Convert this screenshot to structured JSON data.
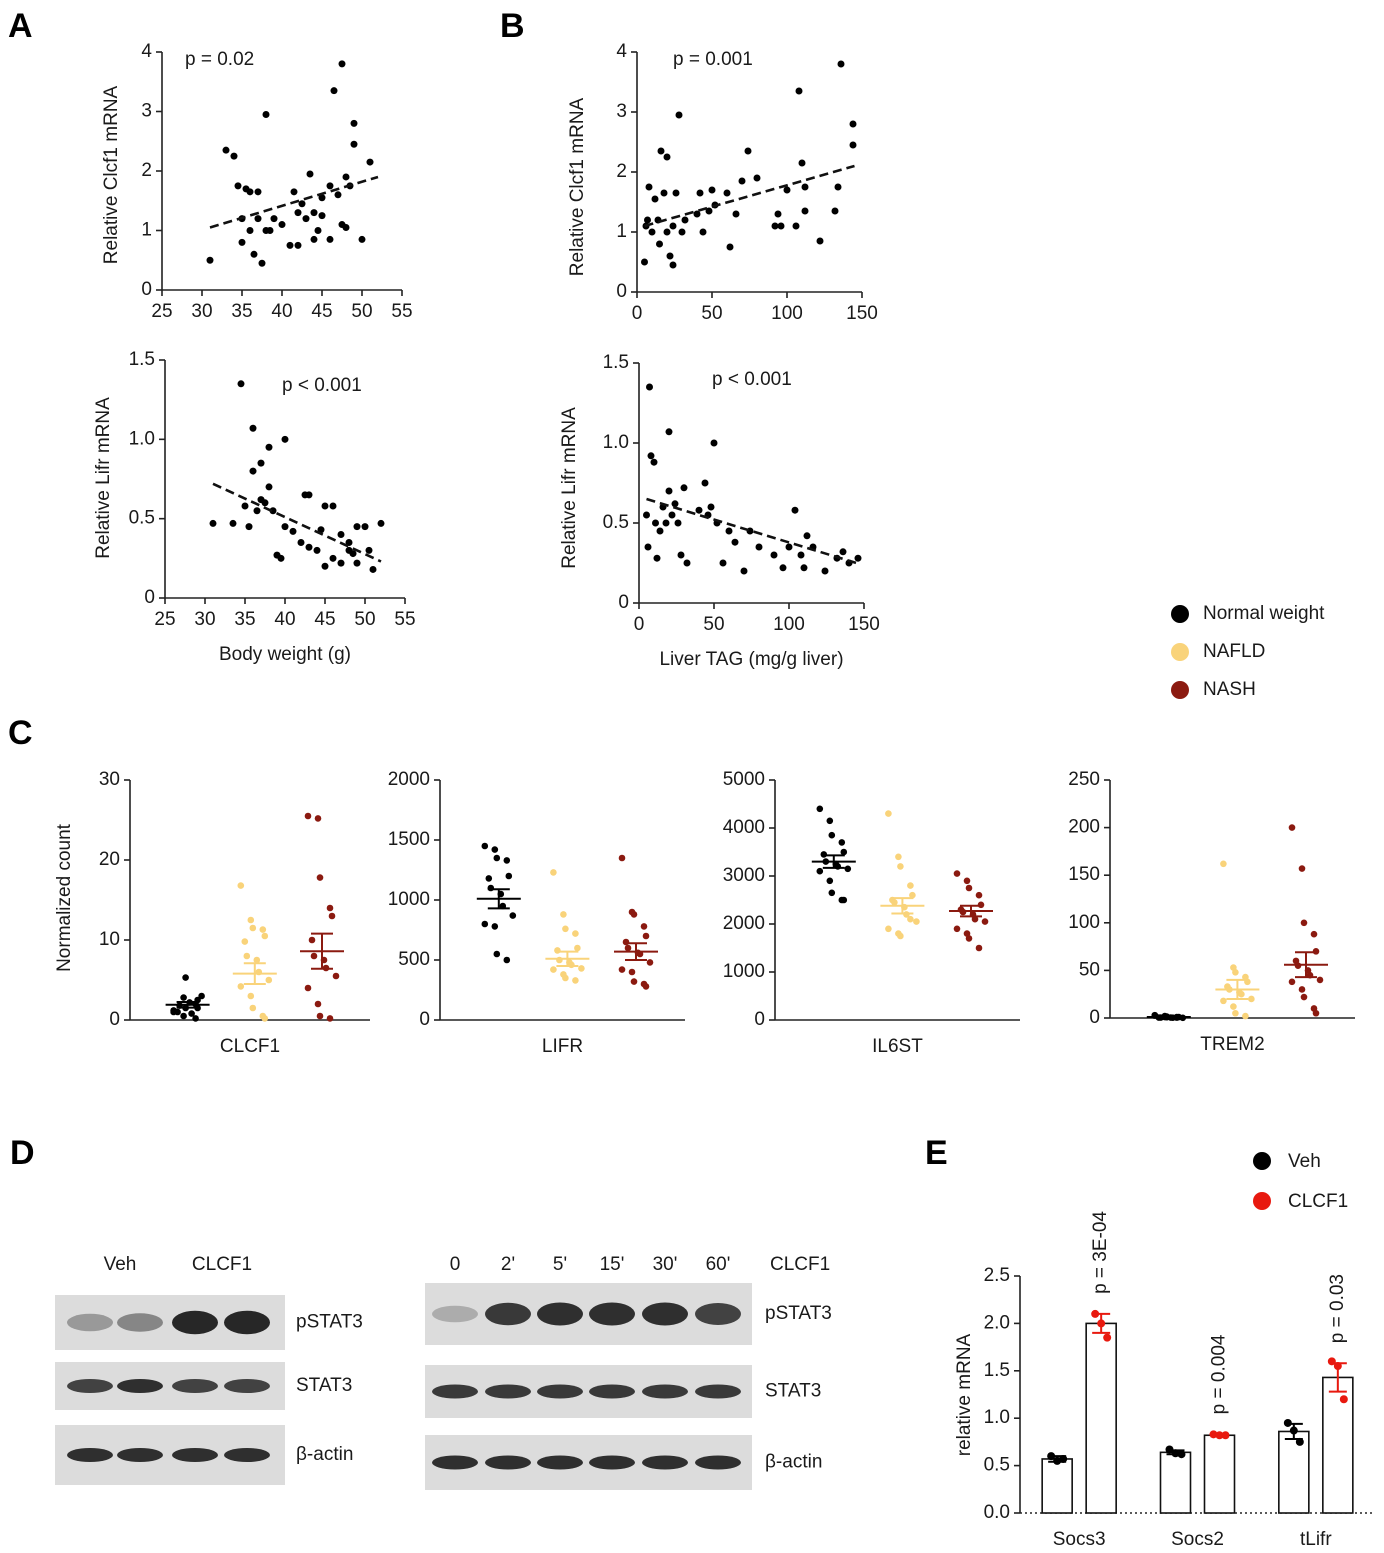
{
  "panel_labels": [
    "A",
    "B",
    "C",
    "D",
    "E"
  ],
  "legend": [
    {
      "name": "Normal weight",
      "color": "#000000"
    },
    {
      "name": "NAFLD",
      "color": "#f9d37a"
    },
    {
      "name": "NASH",
      "color": "#8b1a10"
    }
  ],
  "chart_data": [
    {
      "type": "scatter",
      "annotation": "p = 0.02",
      "ylabel": "Relative Clcf1 mRNA",
      "color": "#000000",
      "xlim": [
        25,
        55
      ],
      "xticks": [
        25,
        30,
        35,
        40,
        45,
        50,
        55
      ],
      "ylim": [
        0,
        4
      ],
      "yticks": [
        0,
        1,
        2,
        3,
        4
      ],
      "x": [
        31,
        33,
        34,
        34.5,
        35,
        35,
        35.5,
        36,
        36,
        36.5,
        37,
        37,
        37.5,
        38,
        38,
        38.5,
        39,
        40,
        41,
        41.5,
        42,
        42,
        42.5,
        43,
        43.5,
        44,
        44,
        44.5,
        45,
        45,
        46,
        46,
        46.5,
        47,
        47.5,
        47.5,
        48,
        48,
        48.5,
        49,
        49,
        50,
        51
      ],
      "values": [
        0.5,
        2.35,
        2.25,
        1.75,
        1.2,
        0.8,
        1.7,
        1.65,
        1.0,
        0.6,
        1.65,
        1.2,
        0.45,
        1.0,
        2.95,
        1.0,
        1.2,
        1.1,
        0.75,
        1.65,
        1.3,
        0.75,
        1.45,
        1.2,
        1.95,
        1.3,
        0.85,
        1.0,
        1.25,
        1.55,
        1.75,
        0.85,
        3.35,
        1.6,
        1.1,
        3.8,
        1.05,
        1.9,
        1.75,
        2.8,
        2.45,
        0.85,
        2.15
      ],
      "trendline": {
        "x": [
          31,
          52
        ],
        "values": [
          1.05,
          1.9
        ]
      }
    },
    {
      "type": "scatter",
      "annotation": "p < 0.001",
      "ylabel": "Relative Lifr mRNA",
      "xlabel": "Body weight (g)",
      "color": "#000000",
      "xlim": [
        25,
        55
      ],
      "xticks": [
        25,
        30,
        35,
        40,
        45,
        50,
        55
      ],
      "ylim": [
        0,
        1.5
      ],
      "yticks": [
        0,
        0.5,
        {
          "value": 1,
          "label": "1.0"
        },
        1.5
      ],
      "x": [
        31,
        33.5,
        34.5,
        35,
        35.5,
        36,
        36,
        36.5,
        37,
        37,
        37.5,
        38,
        38,
        38.5,
        39,
        39.5,
        40,
        40,
        41,
        42,
        42.5,
        43,
        43,
        44,
        44.5,
        45,
        45,
        46,
        46,
        47,
        47,
        48,
        48,
        48.5,
        49,
        49,
        50,
        50.5,
        51,
        52
      ],
      "values": [
        0.47,
        0.47,
        1.35,
        0.58,
        0.45,
        0.8,
        1.07,
        0.55,
        0.62,
        0.85,
        0.6,
        0.95,
        0.7,
        0.55,
        0.27,
        0.25,
        1.0,
        0.45,
        0.42,
        0.35,
        0.65,
        0.65,
        0.32,
        0.3,
        0.43,
        0.2,
        0.58,
        0.58,
        0.25,
        0.4,
        0.22,
        0.3,
        0.35,
        0.28,
        0.45,
        0.22,
        0.45,
        0.3,
        0.18,
        0.47
      ],
      "trendline": {
        "x": [
          31,
          52
        ],
        "values": [
          0.72,
          0.23
        ]
      }
    },
    {
      "type": "scatter",
      "annotation": "p = 0.001",
      "ylabel": "Relative Clcf1 mRNA",
      "color": "#000000",
      "xlim": [
        0,
        150
      ],
      "xticks": [
        0,
        50,
        100,
        150
      ],
      "ylim": [
        0,
        4
      ],
      "yticks": [
        0,
        1,
        2,
        3,
        4
      ],
      "x": [
        5,
        6,
        7,
        8,
        10,
        12,
        14,
        15,
        16,
        18,
        20,
        20,
        22,
        24,
        24,
        26,
        28,
        30,
        32,
        40,
        42,
        44,
        48,
        50,
        52,
        60,
        62,
        66,
        70,
        74,
        80,
        92,
        94,
        96,
        100,
        106,
        108,
        110,
        112,
        112,
        122,
        132,
        134,
        136,
        144,
        144
      ],
      "values": [
        0.5,
        1.1,
        1.2,
        1.75,
        1.0,
        1.55,
        1.2,
        0.8,
        2.35,
        1.65,
        2.25,
        1.0,
        0.6,
        1.1,
        0.45,
        1.65,
        2.95,
        1.0,
        1.2,
        1.3,
        1.65,
        1.0,
        1.35,
        1.7,
        1.45,
        1.65,
        0.75,
        1.3,
        1.85,
        2.35,
        1.9,
        1.1,
        1.3,
        1.1,
        1.7,
        1.1,
        3.35,
        2.15,
        1.75,
        1.35,
        0.85,
        1.35,
        1.75,
        3.8,
        2.8,
        2.45
      ],
      "trendline": {
        "x": [
          5,
          145
        ],
        "values": [
          1.1,
          2.1
        ]
      }
    },
    {
      "type": "scatter",
      "annotation": "p < 0.001",
      "ylabel": "Relative Lifr mRNA",
      "xlabel": "Liver TAG (mg/g liver)",
      "color": "#000000",
      "xlim": [
        0,
        150
      ],
      "xticks": [
        0,
        50,
        100,
        150
      ],
      "ylim": [
        0,
        1.5
      ],
      "yticks": [
        0,
        0.5,
        {
          "value": 1,
          "label": "1.0"
        },
        1.5
      ],
      "x": [
        5,
        6,
        7,
        8,
        10,
        11,
        12,
        14,
        16,
        18,
        20,
        20,
        22,
        24,
        26,
        28,
        30,
        32,
        40,
        44,
        46,
        48,
        50,
        52,
        56,
        60,
        64,
        70,
        74,
        80,
        90,
        96,
        100,
        104,
        108,
        110,
        112,
        116,
        124,
        132,
        136,
        140,
        146
      ],
      "values": [
        0.55,
        0.35,
        1.35,
        0.92,
        0.88,
        0.5,
        0.28,
        0.45,
        0.6,
        0.5,
        1.07,
        0.7,
        0.55,
        0.62,
        0.5,
        0.3,
        0.72,
        0.25,
        0.58,
        0.75,
        0.55,
        0.6,
        1.0,
        0.5,
        0.25,
        0.45,
        0.38,
        0.2,
        0.45,
        0.35,
        0.3,
        0.22,
        0.35,
        0.58,
        0.3,
        0.22,
        0.42,
        0.35,
        0.2,
        0.28,
        0.32,
        0.25,
        0.28
      ],
      "trendline": {
        "x": [
          5,
          145
        ],
        "values": [
          0.65,
          0.25
        ]
      }
    },
    {
      "type": "strip",
      "xlabel": "CLCF1",
      "ylabel": "Normalized count",
      "ylim": [
        0,
        30
      ],
      "yticks": [
        0,
        10,
        20,
        30
      ],
      "series": [
        {
          "values": [
            1,
            0.5,
            1.5,
            2,
            2.5,
            1,
            1.8,
            2.2,
            0.8,
            3,
            1.2,
            2.8,
            5.3,
            0.2,
            1.5
          ],
          "mean": 1.9,
          "sem": 0.35
        },
        {
          "values": [
            16.8,
            12.5,
            11.5,
            11.3,
            10.5,
            9.8,
            8,
            7.5,
            6,
            5,
            4.2,
            3,
            1.5,
            0.5,
            0.2
          ],
          "mean": 5.8,
          "sem": 1.3
        },
        {
          "values": [
            25.5,
            25.2,
            17.8,
            14,
            13,
            10,
            8,
            7.5,
            6.5,
            5.5,
            4,
            2,
            0.5,
            0.2
          ],
          "mean": 8.6,
          "sem": 2.2
        }
      ]
    },
    {
      "type": "strip",
      "xlabel": "LIFR",
      "ylim": [
        0,
        2000
      ],
      "yticks": [
        0,
        500,
        1000,
        1500,
        2000
      ],
      "series": [
        {
          "values": [
            1450,
            1420,
            1350,
            1330,
            1200,
            1180,
            1100,
            1050,
            950,
            870,
            800,
            780,
            550,
            500
          ],
          "mean": 1010,
          "sem": 80
        },
        {
          "values": [
            1230,
            880,
            760,
            720,
            600,
            580,
            500,
            480,
            460,
            430,
            420,
            380,
            350,
            330
          ],
          "mean": 510,
          "sem": 60
        },
        {
          "values": [
            1350,
            900,
            880,
            780,
            700,
            650,
            600,
            560,
            550,
            480,
            420,
            400,
            320,
            300,
            280
          ],
          "mean": 570,
          "sem": 70
        }
      ]
    },
    {
      "type": "strip",
      "xlabel": "IL6ST",
      "ylim": [
        0,
        5000
      ],
      "yticks": [
        0,
        1000,
        2000,
        3000,
        4000,
        5000
      ],
      "series": [
        {
          "values": [
            4400,
            4150,
            3850,
            3700,
            3500,
            3450,
            3300,
            3250,
            3200,
            3150,
            3100,
            2900,
            2650,
            2500,
            2500
          ],
          "mean": 3300,
          "sem": 130
        },
        {
          "values": [
            4300,
            3400,
            3200,
            2800,
            2600,
            2500,
            2450,
            2350,
            2200,
            2050,
            1900,
            1800,
            1750,
            2100
          ],
          "mean": 2380,
          "sem": 160
        },
        {
          "values": [
            3050,
            2900,
            2750,
            2600,
            2400,
            2300,
            2250,
            2200,
            2100,
            2050,
            1900,
            1800,
            1700,
            1500
          ],
          "mean": 2270,
          "sem": 110
        }
      ]
    },
    {
      "type": "strip",
      "xlabel": "TREM2",
      "ylim": [
        0,
        250
      ],
      "yticks": [
        0,
        50,
        100,
        150,
        200,
        250
      ],
      "series": [
        {
          "values": [
            3,
            2,
            1.5,
            1,
            1,
            0.5,
            0.5,
            0.5,
            0.3,
            0.2,
            2.5,
            1,
            0.8,
            0.4
          ],
          "mean": 1,
          "sem": 0.3
        },
        {
          "values": [
            162,
            53,
            48,
            43,
            38,
            33,
            30,
            27,
            25,
            20,
            18,
            12,
            5,
            2
          ],
          "mean": 30,
          "sem": 10
        },
        {
          "values": [
            200,
            157,
            100,
            88,
            70,
            60,
            55,
            50,
            45,
            40,
            38,
            30,
            22,
            10,
            5
          ],
          "mean": 56,
          "sem": 13
        }
      ]
    },
    {
      "type": "bar",
      "ylabel": "relative mRNA",
      "categories": [
        "Socs3",
        "Socs2",
        "tLifr"
      ],
      "ylim": [
        0,
        2.5
      ],
      "yticks": [
        {
          "value": 0,
          "label": "0.0"
        },
        0.5,
        {
          "value": 1,
          "label": "1.0"
        },
        1.5,
        {
          "value": 2,
          "label": "2.0"
        },
        2.5
      ],
      "annotations": [
        "p = 3E-04",
        "p = 0.004",
        "p = 0.03"
      ],
      "series": [
        {
          "name": "Veh",
          "color": "#000000",
          "values": [
            0.57,
            0.64,
            0.86
          ],
          "errors": [
            0.03,
            0.02,
            0.08
          ],
          "points": [
            [
              0.6,
              0.55,
              0.57
            ],
            [
              0.67,
              0.63,
              0.62
            ],
            [
              0.95,
              0.87,
              0.75
            ]
          ]
        },
        {
          "name": "CLCF1",
          "color": "#e8190f",
          "values": [
            2.0,
            0.82,
            1.43
          ],
          "errors": [
            0.1,
            0.01,
            0.15
          ],
          "points": [
            [
              2.1,
              2.0,
              1.85
            ],
            [
              0.83,
              0.82,
              0.82
            ],
            [
              1.6,
              1.55,
              1.2
            ]
          ]
        }
      ]
    }
  ],
  "blots": {
    "left": {
      "lanes": [
        "Veh",
        "CLCF1"
      ],
      "rows": [
        "pSTAT3",
        "STAT3",
        "β-actin"
      ]
    },
    "right": {
      "lanes": [
        "0",
        "2'",
        "5'",
        "15'",
        "30'",
        "60'"
      ],
      "treatment": "CLCF1",
      "rows": [
        "pSTAT3",
        "STAT3",
        "β-actin"
      ]
    }
  }
}
